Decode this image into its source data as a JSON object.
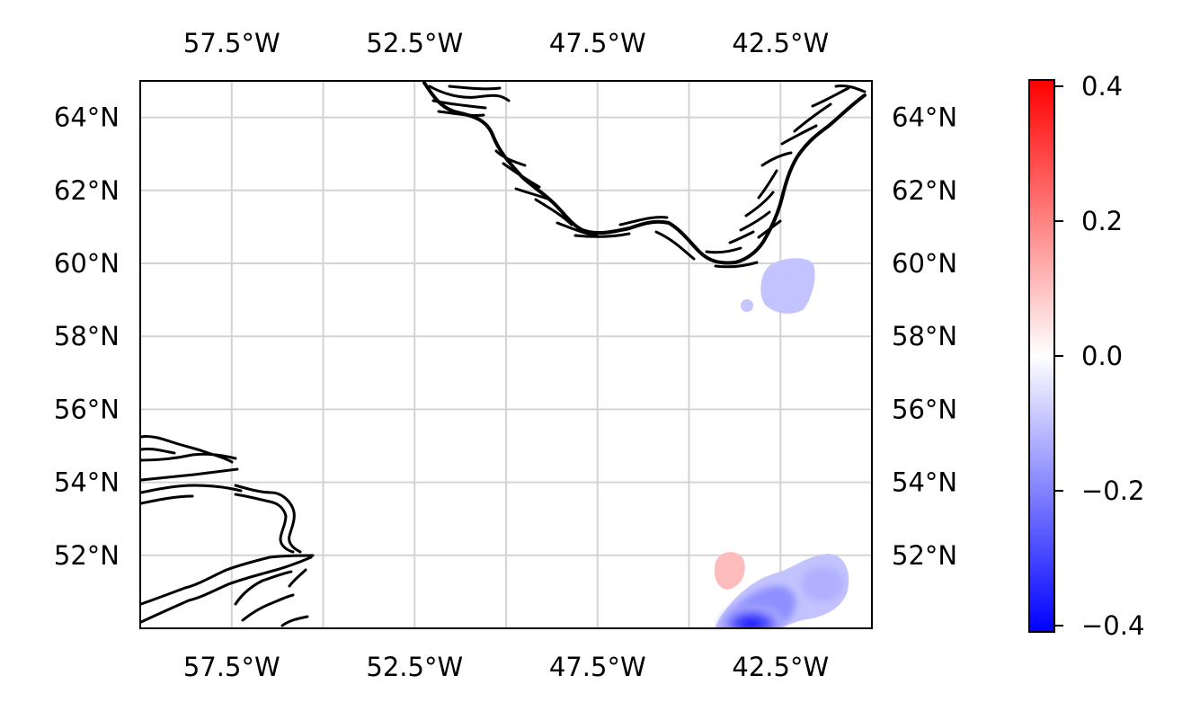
{
  "map": {
    "lon_range": [
      -60,
      -40
    ],
    "lat_range": [
      50,
      65
    ],
    "gridlines": true,
    "lon_ticks": [
      {
        "value": -57.5,
        "label": "57.5°W"
      },
      {
        "value": -52.5,
        "label": "52.5°W"
      },
      {
        "value": -47.5,
        "label": "47.5°W"
      },
      {
        "value": -42.5,
        "label": "42.5°W"
      }
    ],
    "grid_lons": [
      -57.5,
      -55,
      -52.5,
      -50,
      -47.5,
      -45,
      -42.5,
      -40
    ],
    "lat_ticks": [
      {
        "value": 52,
        "label": "52°N"
      },
      {
        "value": 54,
        "label": "54°N"
      },
      {
        "value": 56,
        "label": "56°N"
      },
      {
        "value": 58,
        "label": "58°N"
      },
      {
        "value": 60,
        "label": "60°N"
      },
      {
        "value": 62,
        "label": "62°N"
      },
      {
        "value": 64,
        "label": "64°N"
      }
    ],
    "anomalies": [
      {
        "name": "south-greenland-negative",
        "lon": -42.2,
        "lat": 59.5,
        "value": -0.13
      },
      {
        "name": "small-negative-spot",
        "lon": -43.8,
        "lat": 58.9,
        "value": -0.12
      },
      {
        "name": "positive-spot",
        "lon": -43.7,
        "lat": 51.6,
        "value": 0.12
      },
      {
        "name": "southeast-strong-negative",
        "lon": -42.5,
        "lat": 50.3,
        "value": -0.38
      },
      {
        "name": "southeast-weak-negative",
        "lon": -41.2,
        "lat": 51.1,
        "value": -0.16
      }
    ]
  },
  "colorbar": {
    "colormap": "bwr",
    "min": -0.4,
    "max": 0.4,
    "colors": {
      "low": "#0000ff",
      "mid": "#ffffff",
      "high": "#ff0000"
    },
    "ticks": [
      {
        "value": 0.4,
        "label": "0.4"
      },
      {
        "value": 0.2,
        "label": "0.2"
      },
      {
        "value": 0.0,
        "label": "0.0"
      },
      {
        "value": -0.2,
        "label": "−0.2"
      },
      {
        "value": -0.4,
        "label": "−0.4"
      }
    ]
  }
}
